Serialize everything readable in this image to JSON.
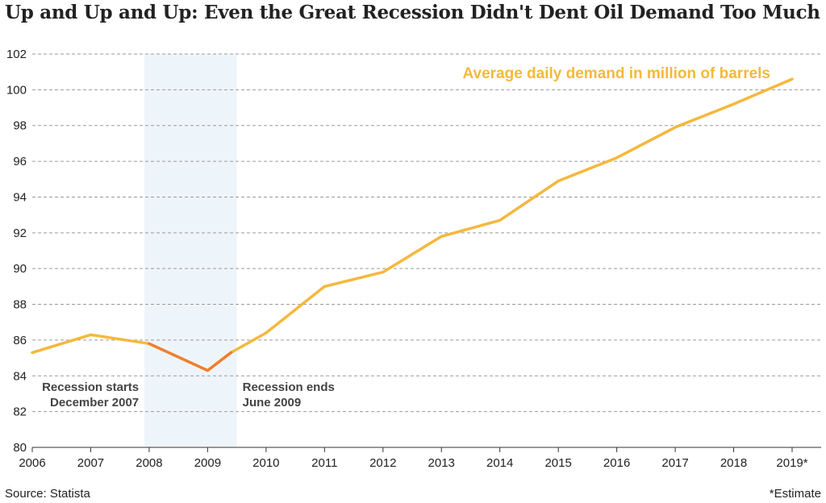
{
  "chart_data": {
    "type": "line",
    "title": "Up and Up and Up: Even the Great Recession Didn't Dent Oil Demand Too Much",
    "x": [
      "2006",
      "2007",
      "2008",
      "2009",
      "2010",
      "2011",
      "2012",
      "2013",
      "2014",
      "2015",
      "2016",
      "2017",
      "2018",
      "2019"
    ],
    "x_tick_labels": [
      "2006",
      "2007",
      "2008",
      "2009",
      "2010",
      "2011",
      "2012",
      "2013",
      "2014",
      "2015",
      "2016",
      "2017",
      "2018",
      "2019*"
    ],
    "series": [
      {
        "name": "Average daily demand in million of barrels",
        "x": [
          2006,
          2007,
          2008,
          2009,
          2009.4,
          2010,
          2011,
          2012,
          2013,
          2014,
          2015,
          2016,
          2017,
          2018,
          2019
        ],
        "values": [
          85.3,
          86.3,
          85.8,
          84.3,
          85.3,
          86.4,
          89.0,
          89.8,
          91.8,
          92.7,
          94.9,
          96.2,
          97.9,
          99.2,
          100.6
        ],
        "color": "#f5b83d",
        "recession_color": "#ee7f30"
      }
    ],
    "ylim": [
      80,
      102
    ],
    "y_ticks": [
      80,
      82,
      84,
      86,
      88,
      90,
      92,
      94,
      96,
      98,
      100,
      102
    ],
    "grid": true,
    "recession_band": {
      "start": 2007.92,
      "end": 2009.5,
      "start_label": [
        "Recession starts",
        "December 2007"
      ],
      "end_label": [
        "Recession ends",
        "June 2009"
      ],
      "color": "#eef5fa"
    },
    "legend_placement": "top-right"
  },
  "source": "Source: Statista",
  "footnote": "*Estimate"
}
